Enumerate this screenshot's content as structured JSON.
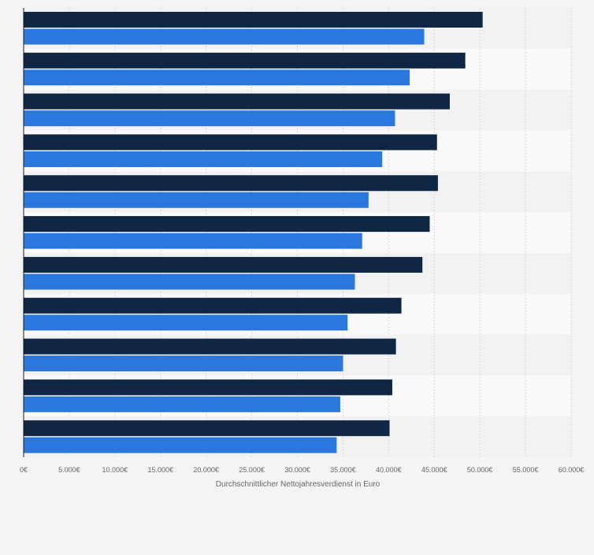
{
  "chart_data": {
    "type": "bar",
    "orientation": "horizontal",
    "title": "",
    "xlabel": "Durchschnittlicher Nettojahresverdienst in Euro",
    "ylabel": "",
    "xlim": [
      0,
      60000
    ],
    "x_ticks": [
      0,
      5000,
      10000,
      15000,
      20000,
      25000,
      30000,
      35000,
      40000,
      45000,
      50000,
      55000,
      60000
    ],
    "x_tick_labels": [
      "0€",
      "5.000€",
      "10.000€",
      "15.000€",
      "20.000€",
      "25.000€",
      "30.000€",
      "35.000€",
      "40.000€",
      "45.000€",
      "50.000€",
      "55.000€",
      "60.000€"
    ],
    "grid": true,
    "legend": "none",
    "categories": [
      "",
      "",
      "",
      "",
      "",
      "",
      "",
      "",
      "",
      "",
      ""
    ],
    "series": [
      {
        "name": "",
        "color": "#0f2744",
        "values": [
          50300,
          48400,
          46700,
          45300,
          45400,
          44500,
          43700,
          41400,
          40800,
          40400,
          40100
        ]
      },
      {
        "name": "",
        "color": "#2a78de",
        "values": [
          43900,
          42300,
          40700,
          39300,
          37800,
          37100,
          36300,
          35500,
          35000,
          34700,
          34300
        ]
      }
    ]
  }
}
